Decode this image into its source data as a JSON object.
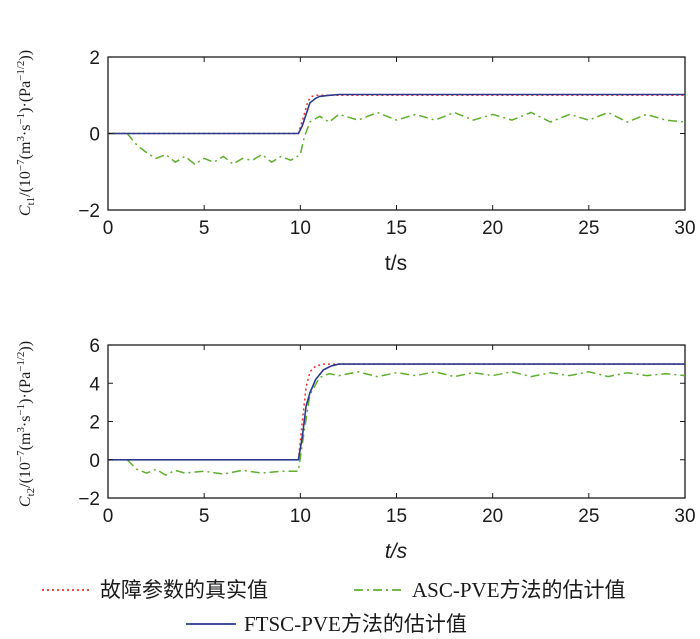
{
  "chart_data": [
    {
      "type": "line",
      "xlabel": "t/s",
      "ylabel": "C_t1/(10^-7(m^3·s^-1)·(Pa^-1/2))",
      "ylabel_parts": {
        "sym": "C",
        "sub": "t1",
        "body": "/(10",
        "exp1": "−7",
        "mid": "(m",
        "exp2": "3",
        "mid2": "·s",
        "exp3": "−1",
        "mid3": ")·(Pa",
        "exp4": "−1/2",
        "end": "))"
      },
      "xlim": [
        0,
        30
      ],
      "ylim": [
        -2,
        2
      ],
      "xticks": [
        "0",
        "5",
        "10",
        "15",
        "20",
        "25",
        "30"
      ],
      "yticks": [
        "−2",
        "0",
        "2"
      ],
      "grid": false,
      "series": [
        {
          "name": "故障参数的真实值",
          "style": "dotted",
          "color": "#e8332a",
          "x": [
            0,
            9.9,
            10.2,
            10.4,
            10.6,
            10.8,
            30
          ],
          "y": [
            0,
            0,
            0.5,
            0.85,
            0.97,
            1.0,
            1.0
          ]
        },
        {
          "name": "ASC-PVE方法的估计值",
          "style": "dashdot",
          "color": "#5fae2e",
          "x": [
            0,
            1,
            1.5,
            2,
            2.5,
            3,
            3.5,
            4,
            4.5,
            5,
            5.5,
            6,
            6.5,
            7,
            7.5,
            8,
            8.5,
            9,
            9.5,
            10,
            10.2,
            10.5,
            11,
            11.5,
            12,
            13,
            14,
            15,
            16,
            17,
            18,
            19,
            20,
            21,
            22,
            23,
            24,
            25,
            26,
            27,
            28,
            29,
            30
          ],
          "y": [
            0,
            0,
            -0.3,
            -0.5,
            -0.65,
            -0.55,
            -0.75,
            -0.6,
            -0.8,
            -0.65,
            -0.75,
            -0.6,
            -0.8,
            -0.65,
            -0.7,
            -0.55,
            -0.75,
            -0.6,
            -0.7,
            -0.55,
            -0.1,
            0.3,
            0.45,
            0.3,
            0.5,
            0.35,
            0.55,
            0.35,
            0.5,
            0.35,
            0.55,
            0.35,
            0.5,
            0.35,
            0.55,
            0.3,
            0.5,
            0.35,
            0.55,
            0.3,
            0.5,
            0.35,
            0.3
          ]
        },
        {
          "name": "FTSC-PVE方法的估计值",
          "style": "solid",
          "color": "#2b3a8f",
          "x": [
            0,
            9.9,
            10.1,
            10.3,
            10.5,
            10.8,
            11,
            11.5,
            12,
            30
          ],
          "y": [
            0,
            0,
            0.2,
            0.5,
            0.8,
            0.92,
            0.97,
            1.0,
            1.02,
            1.02
          ]
        }
      ]
    },
    {
      "type": "line",
      "xlabel": "t/s",
      "ylabel": "C_t2/(10^-7(m^3·s^-1)·(Pa^-1/2))",
      "ylabel_parts": {
        "sym": "C",
        "sub": "t2",
        "body": "/(10",
        "exp1": "−7",
        "mid": "(m",
        "exp2": "3",
        "mid2": "·s",
        "exp3": "−1",
        "mid3": ")·(Pa",
        "exp4": "−1/2",
        "end": "))"
      },
      "xlim": [
        0,
        30
      ],
      "ylim": [
        -2,
        6
      ],
      "xticks": [
        "0",
        "5",
        "10",
        "15",
        "20",
        "25",
        "30"
      ],
      "yticks": [
        "−2",
        "0",
        "2",
        "4",
        "6"
      ],
      "grid": false,
      "series": [
        {
          "name": "故障参数的真实值",
          "style": "dotted",
          "color": "#e8332a",
          "x": [
            0,
            9.9,
            10.1,
            10.3,
            10.5,
            10.8,
            11.2,
            30
          ],
          "y": [
            0,
            0,
            2.0,
            3.8,
            4.6,
            4.9,
            5.0,
            5.0
          ]
        },
        {
          "name": "ASC-PVE方法的估计值",
          "style": "dashdot",
          "color": "#5fae2e",
          "x": [
            0,
            1,
            1.5,
            2,
            2.5,
            3,
            3.5,
            4,
            5,
            6,
            7,
            8,
            9,
            9.9,
            10.2,
            10.5,
            11,
            11.5,
            12,
            13,
            14,
            15,
            16,
            17,
            18,
            19,
            20,
            21,
            22,
            23,
            24,
            25,
            26,
            27,
            28,
            29,
            30
          ],
          "y": [
            0,
            0,
            -0.5,
            -0.7,
            -0.5,
            -0.8,
            -0.55,
            -0.7,
            -0.6,
            -0.75,
            -0.55,
            -0.7,
            -0.6,
            -0.6,
            1.5,
            3.4,
            4.3,
            4.5,
            4.4,
            4.6,
            4.35,
            4.55,
            4.4,
            4.6,
            4.35,
            4.55,
            4.4,
            4.6,
            4.35,
            4.55,
            4.4,
            4.6,
            4.35,
            4.55,
            4.4,
            4.5,
            4.4
          ]
        },
        {
          "name": "FTSC-PVE方法的估计值",
          "style": "solid",
          "color": "#2b3a8f",
          "x": [
            0,
            9.9,
            10.1,
            10.3,
            10.5,
            10.8,
            11.2,
            11.6,
            12,
            30
          ],
          "y": [
            0,
            0,
            1.2,
            2.8,
            3.5,
            4.2,
            4.7,
            4.9,
            5.0,
            5.0
          ]
        }
      ]
    }
  ],
  "legend": {
    "true_label": "故障参数的真实值",
    "asc_label": "ASC-PVE方法的估计值",
    "ftsc_label": "FTSC-PVE方法的估计值"
  }
}
